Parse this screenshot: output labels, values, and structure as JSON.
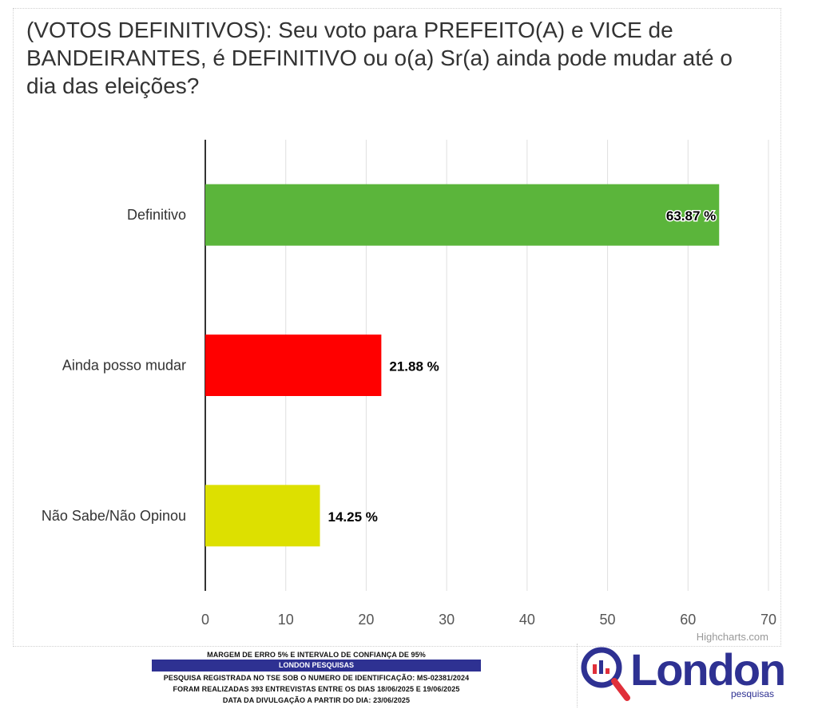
{
  "title": "(VOTOS DEFINITIVOS): Seu voto para PREFEITO(A) e VICE de BANDEIRANTES, é DEFINITIVO ou o(a) Sr(a) ainda pode mudar até o dia das eleições?",
  "credit": "Highcharts.com",
  "chart_data": {
    "type": "bar",
    "orientation": "horizontal",
    "categories": [
      "Definitivo",
      "Ainda posso mudar",
      "Não Sabe/Não Opinou"
    ],
    "values": [
      63.87,
      21.88,
      14.25
    ],
    "value_labels": [
      "63.87 %",
      "21.88 %",
      "14.25 %"
    ],
    "colors": [
      "#5bb53b",
      "#ff0000",
      "#dde000"
    ],
    "xlim": [
      0,
      70
    ],
    "ticks": [
      0,
      10,
      20,
      30,
      40,
      50,
      60,
      70
    ],
    "grid": true
  },
  "footer": {
    "margin": "MARGEM DE ERRO 5% E INTERVALO DE CONFIANÇA DE 95%",
    "company": "LONDON PESQUISAS",
    "registration": "PESQUISA REGISTRADA NO TSE SOB O NUMERO DE IDENTIFICAÇÃO: MS-02381/2024",
    "interviews": "FORAM REALIZADAS 393 ENTREVISTAS ENTRE OS DIAS 18/06/2025 E 19/06/2025",
    "release": "DATA DA DIVULGAÇÃO A PARTIR DO DIA: 23/06/2025"
  },
  "logo": {
    "word": "London",
    "sub": "pesquisas",
    "color": "#2e3192",
    "accent": "#e0303a"
  }
}
